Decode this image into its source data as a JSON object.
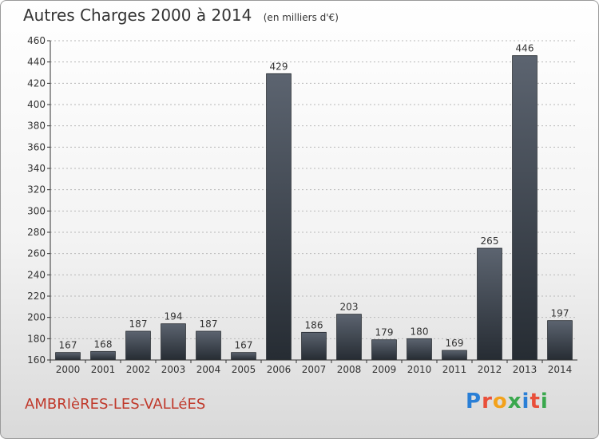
{
  "header": {
    "title": "Autres Charges 2000 à 2014",
    "subtitle": "(en milliers d'€)"
  },
  "footer": {
    "town": "AMBRIèRES-LES-VALLéES",
    "logo_letters": [
      "P",
      "r",
      "o",
      "x",
      "i",
      "t",
      "i"
    ]
  },
  "colors": {
    "bar_top": "#5c6470",
    "bar_bottom": "#262c33",
    "axis": "#333333",
    "grid": "#b8b8b8",
    "town": "#c0392b"
  },
  "chart_data": {
    "type": "bar",
    "title": "Autres Charges 2000 à 2014",
    "subtitle": "(en milliers d'€)",
    "xlabel": "",
    "ylabel": "",
    "categories": [
      "2000",
      "2001",
      "2002",
      "2003",
      "2004",
      "2005",
      "2006",
      "2007",
      "2008",
      "2009",
      "2010",
      "2011",
      "2012",
      "2013",
      "2014"
    ],
    "values": [
      167,
      168,
      187,
      194,
      187,
      167,
      429,
      186,
      203,
      179,
      180,
      169,
      265,
      446,
      197
    ],
    "ylim": [
      160,
      460
    ],
    "yticks": [
      160,
      180,
      200,
      220,
      240,
      260,
      280,
      300,
      320,
      340,
      360,
      380,
      400,
      420,
      440,
      460
    ],
    "grid": true,
    "data_labels": true
  }
}
